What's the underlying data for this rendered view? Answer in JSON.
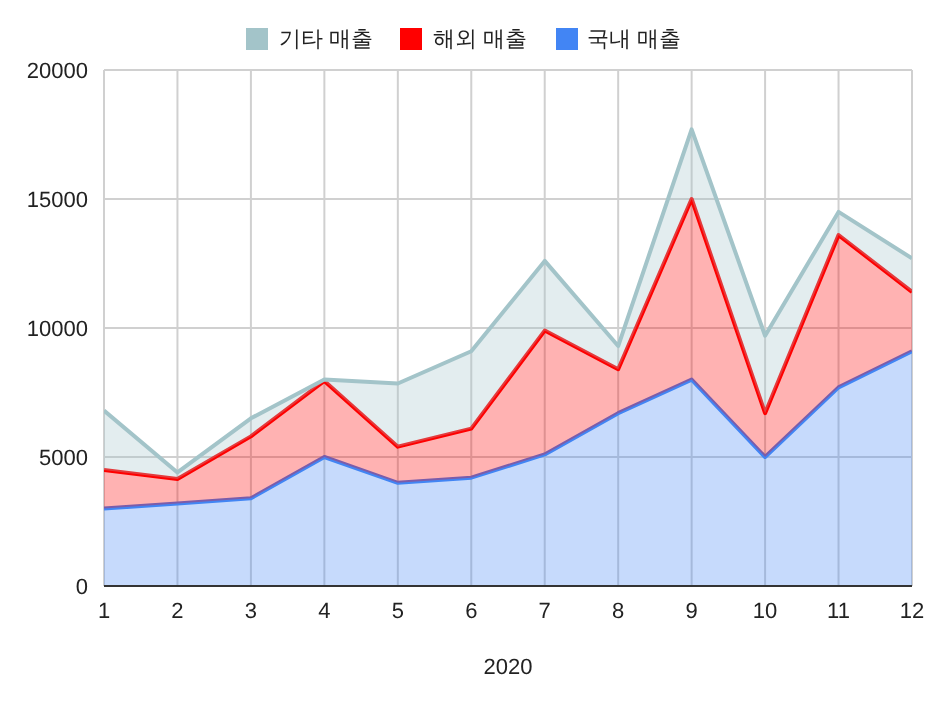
{
  "chart_data": {
    "type": "area",
    "stacked": true,
    "xlabel": "2020",
    "x": [
      1,
      2,
      3,
      4,
      5,
      6,
      7,
      8,
      9,
      10,
      11,
      12
    ],
    "xlim": [
      1,
      12
    ],
    "xticks": [
      1,
      2,
      3,
      4,
      5,
      6,
      7,
      8,
      9,
      10,
      11,
      12
    ],
    "ylim": [
      0,
      20000
    ],
    "yticks": [
      0,
      5000,
      10000,
      15000,
      20000
    ],
    "grid": true,
    "legend": "top",
    "series": [
      {
        "name": "국내 매출",
        "color": "#4285f4",
        "values": [
          3000,
          3200,
          3400,
          5000,
          4000,
          4200,
          5100,
          6700,
          8000,
          5000,
          7700,
          9100
        ]
      },
      {
        "name": "해외 매출",
        "color": "#ff0000",
        "values": [
          1500,
          950,
          2400,
          2950,
          1400,
          1900,
          4800,
          1700,
          7000,
          1700,
          5900,
          2300
        ]
      },
      {
        "name": "기타 매출",
        "color": "#a3c4c9",
        "values": [
          2300,
          250,
          700,
          50,
          2450,
          3000,
          2700,
          900,
          2700,
          3000,
          900,
          1300
        ]
      }
    ]
  }
}
